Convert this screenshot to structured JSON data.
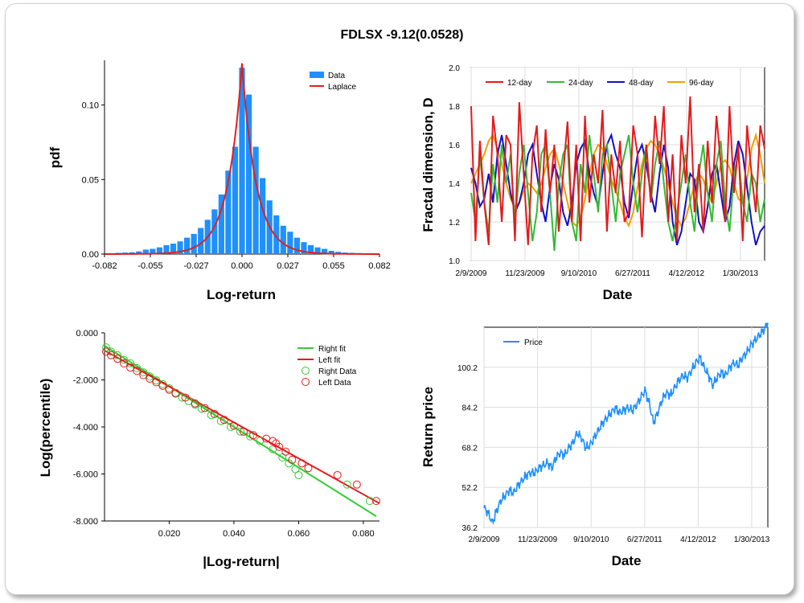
{
  "title": "FDLSX -9.12(0.0528)",
  "colors": {
    "bar_blue": "#1e90ff",
    "laplace_red": "#e02020",
    "d12": "#e41a1c",
    "d24": "#33bb33",
    "d48": "#1010c8",
    "d96": "#f0a000",
    "right_green": "#33cc33",
    "left_red": "#e41a1c",
    "price_blue": "#1e90ff",
    "grid": "#dddddd"
  },
  "chart_data": [
    {
      "id": "histogram",
      "type": "bar",
      "xlabel": "Log-return",
      "ylabel": "pdf",
      "xlim": [
        -0.082,
        0.082
      ],
      "ylim": [
        0,
        0.13
      ],
      "xticks": [
        "-0.082",
        "-0.055",
        "-0.027",
        "0.000",
        "0.027",
        "0.055",
        "0.082"
      ],
      "yticks": [
        "0.00",
        "0.05",
        "0.10"
      ],
      "bin_width": 0.0041,
      "bin_centers": [
        -0.0779,
        -0.0738,
        -0.0697,
        -0.0656,
        -0.0615,
        -0.0574,
        -0.0533,
        -0.0492,
        -0.0451,
        -0.041,
        -0.0369,
        -0.0328,
        -0.0287,
        -0.0246,
        -0.0205,
        -0.0164,
        -0.0123,
        -0.0082,
        -0.0041,
        0.0,
        0.0041,
        0.0082,
        0.0123,
        0.0164,
        0.0205,
        0.0246,
        0.0287,
        0.0328,
        0.0369,
        0.041,
        0.0451,
        0.0492,
        0.0533,
        0.0574,
        0.0615,
        0.0656,
        0.0697,
        0.0738,
        0.0779
      ],
      "values": [
        0.0005,
        0.0008,
        0.001,
        0.0012,
        0.0018,
        0.003,
        0.0035,
        0.0045,
        0.006,
        0.007,
        0.0085,
        0.011,
        0.0135,
        0.0175,
        0.023,
        0.03,
        0.04,
        0.056,
        0.072,
        0.125,
        0.107,
        0.072,
        0.051,
        0.036,
        0.026,
        0.019,
        0.015,
        0.011,
        0.008,
        0.006,
        0.0045,
        0.0035,
        0.0022,
        0.0015,
        0.001,
        0.0008,
        0.0006,
        0.0004,
        0.0005
      ],
      "laplace_peak": 0.128,
      "laplace_scale": 0.0085,
      "legend": [
        {
          "name": "Data"
        },
        {
          "name": "Laplace"
        }
      ]
    },
    {
      "id": "fractal",
      "type": "line",
      "xlabel": "Date",
      "ylabel": "Fractal dimension, D",
      "ylim": [
        1.0,
        2.0
      ],
      "yticks": [
        "1.0",
        "1.2",
        "1.4",
        "1.6",
        "1.8",
        "2.0"
      ],
      "xticks": [
        "2/9/2009",
        "11/23/2009",
        "9/10/2010",
        "6/27/2011",
        "4/12/2012",
        "1/30/2013"
      ],
      "x_range_fraction_of_ticks": [
        0,
        1.09
      ],
      "series": [
        {
          "name": "12-day",
          "color_key": "d12",
          "values": [
            1.8,
            1.1,
            1.62,
            1.3,
            1.08,
            1.75,
            1.55,
            1.2,
            1.65,
            1.6,
            1.1,
            1.82,
            1.45,
            1.08,
            1.55,
            1.7,
            1.25,
            1.68,
            1.35,
            1.6,
            1.15,
            1.45,
            1.72,
            1.2,
            1.6,
            1.1,
            1.75,
            1.3,
            1.55,
            1.4,
            1.78,
            1.15,
            1.55,
            1.35,
            1.62,
            1.2,
            1.25,
            1.7,
            1.55,
            1.12,
            1.6,
            1.3,
            1.75,
            1.5,
            1.8,
            1.2,
            1.55,
            1.1,
            1.65,
            1.4,
            1.85,
            1.25,
            1.5,
            1.15,
            1.62,
            1.3,
            1.75,
            1.5,
            1.2,
            1.8,
            1.35,
            1.6,
            1.1,
            1.7,
            1.45,
            1.25,
            1.7,
            1.58
          ]
        },
        {
          "name": "24-day",
          "color_key": "d24",
          "values": [
            1.35,
            1.2,
            1.55,
            1.3,
            1.15,
            1.5,
            1.3,
            1.6,
            1.4,
            1.55,
            1.2,
            1.45,
            1.6,
            1.35,
            1.1,
            1.25,
            1.55,
            1.6,
            1.35,
            1.05,
            1.4,
            1.55,
            1.6,
            1.2,
            1.1,
            1.5,
            1.35,
            1.65,
            1.45,
            1.25,
            1.55,
            1.6,
            1.4,
            1.2,
            1.45,
            1.55,
            1.65,
            1.4,
            1.25,
            1.45,
            1.6,
            1.3,
            1.5,
            1.62,
            1.4,
            1.2,
            1.1,
            1.25,
            1.4,
            1.55,
            1.3,
            1.15,
            1.45,
            1.6,
            1.35,
            1.2,
            1.5,
            1.62,
            1.3,
            1.15,
            1.45,
            1.55,
            1.3,
            1.2,
            1.45,
            1.4,
            1.2,
            1.32
          ]
        },
        {
          "name": "48-day",
          "color_key": "d48",
          "values": [
            1.48,
            1.4,
            1.28,
            1.32,
            1.45,
            1.3,
            1.55,
            1.65,
            1.5,
            1.35,
            1.25,
            1.3,
            1.4,
            1.55,
            1.6,
            1.45,
            1.3,
            1.2,
            1.38,
            1.5,
            1.42,
            1.25,
            1.18,
            1.3,
            1.5,
            1.58,
            1.62,
            1.45,
            1.35,
            1.28,
            1.45,
            1.6,
            1.65,
            1.55,
            1.48,
            1.3,
            1.22,
            1.4,
            1.55,
            1.6,
            1.5,
            1.35,
            1.25,
            1.45,
            1.6,
            1.48,
            1.2,
            1.08,
            1.15,
            1.3,
            1.45,
            1.42,
            1.2,
            1.15,
            1.28,
            1.45,
            1.5,
            1.35,
            1.2,
            1.28,
            1.5,
            1.62,
            1.55,
            1.38,
            1.2,
            1.08,
            1.15,
            1.18
          ]
        },
        {
          "name": "96-day",
          "color_key": "d96",
          "values": [
            1.4,
            1.45,
            1.5,
            1.55,
            1.62,
            1.65,
            1.58,
            1.5,
            1.4,
            1.32,
            1.28,
            1.3,
            1.36,
            1.4,
            1.38,
            1.35,
            1.4,
            1.48,
            1.55,
            1.58,
            1.5,
            1.4,
            1.3,
            1.2,
            1.18,
            1.22,
            1.32,
            1.45,
            1.55,
            1.6,
            1.58,
            1.5,
            1.42,
            1.36,
            1.3,
            1.22,
            1.18,
            1.25,
            1.38,
            1.5,
            1.58,
            1.62,
            1.6,
            1.55,
            1.48,
            1.4,
            1.3,
            1.22,
            1.18,
            1.22,
            1.3,
            1.4,
            1.45,
            1.42,
            1.35,
            1.3,
            1.4,
            1.5,
            1.52,
            1.48,
            1.4,
            1.32,
            1.3,
            1.42,
            1.58,
            1.65,
            1.55,
            1.4
          ]
        }
      ]
    },
    {
      "id": "tails",
      "type": "scatter",
      "xlabel": "|Log-return|",
      "ylabel": "Log(percentile)",
      "xlim": [
        0,
        0.085
      ],
      "ylim": [
        -8.0,
        0.0
      ],
      "xticks": [
        "0.020",
        "0.040",
        "0.060",
        "0.080"
      ],
      "yticks": [
        "0.000",
        "-2.000",
        "-4.000",
        "-6.000",
        "-8.000"
      ],
      "right_fit": {
        "name": "Right fit",
        "x": [
          0,
          0.084
        ],
        "y": [
          -0.55,
          -7.8
        ]
      },
      "left_fit": {
        "name": "Left fit",
        "x": [
          0,
          0.085
        ],
        "y": [
          -0.75,
          -7.25
        ]
      },
      "right_data": {
        "name": "Right Data",
        "points": [
          [
            0.0005,
            -0.62
          ],
          [
            0.002,
            -0.8
          ],
          [
            0.004,
            -0.95
          ],
          [
            0.006,
            -1.15
          ],
          [
            0.008,
            -1.3
          ],
          [
            0.01,
            -1.5
          ],
          [
            0.012,
            -1.68
          ],
          [
            0.014,
            -1.85
          ],
          [
            0.016,
            -2.02
          ],
          [
            0.018,
            -2.18
          ],
          [
            0.02,
            -2.36
          ],
          [
            0.022,
            -2.55
          ],
          [
            0.024,
            -2.75
          ],
          [
            0.026,
            -2.9
          ],
          [
            0.028,
            -3.05
          ],
          [
            0.03,
            -3.22
          ],
          [
            0.033,
            -3.5
          ],
          [
            0.036,
            -3.75
          ],
          [
            0.039,
            -4.0
          ],
          [
            0.042,
            -4.2
          ],
          [
            0.045,
            -4.4
          ],
          [
            0.048,
            -4.6
          ],
          [
            0.052,
            -4.95
          ],
          [
            0.055,
            -5.3
          ],
          [
            0.057,
            -5.55
          ],
          [
            0.059,
            -5.8
          ],
          [
            0.06,
            -6.05
          ],
          [
            0.075,
            -6.45
          ],
          [
            0.082,
            -7.15
          ]
        ]
      },
      "left_data": {
        "name": "Left Data",
        "points": [
          [
            0.0005,
            -0.8
          ],
          [
            0.002,
            -0.95
          ],
          [
            0.004,
            -1.1
          ],
          [
            0.006,
            -1.3
          ],
          [
            0.008,
            -1.48
          ],
          [
            0.01,
            -1.62
          ],
          [
            0.012,
            -1.8
          ],
          [
            0.014,
            -1.95
          ],
          [
            0.016,
            -2.1
          ],
          [
            0.018,
            -2.25
          ],
          [
            0.02,
            -2.42
          ],
          [
            0.022,
            -2.58
          ],
          [
            0.025,
            -2.75
          ],
          [
            0.028,
            -3.0
          ],
          [
            0.031,
            -3.2
          ],
          [
            0.034,
            -3.45
          ],
          [
            0.037,
            -3.7
          ],
          [
            0.04,
            -3.95
          ],
          [
            0.043,
            -4.2
          ],
          [
            0.046,
            -4.35
          ],
          [
            0.05,
            -4.5
          ],
          [
            0.052,
            -4.6
          ],
          [
            0.053,
            -4.7
          ],
          [
            0.054,
            -4.85
          ],
          [
            0.056,
            -5.05
          ],
          [
            0.058,
            -5.4
          ],
          [
            0.061,
            -5.55
          ],
          [
            0.063,
            -5.75
          ],
          [
            0.072,
            -6.05
          ],
          [
            0.078,
            -6.45
          ],
          [
            0.084,
            -7.15
          ]
        ]
      }
    },
    {
      "id": "price",
      "type": "line",
      "xlabel": "Date",
      "ylabel": "Return price",
      "ylim": [
        36.2,
        116.2
      ],
      "yticks": [
        "36.2",
        "52.2",
        "68.2",
        "84.2",
        "100.2"
      ],
      "xticks": [
        "2/9/2009",
        "11/23/2009",
        "9/10/2010",
        "6/27/2011",
        "4/12/2012",
        "1/30/2013"
      ],
      "x_range_fraction_of_ticks": [
        0,
        1.06
      ],
      "series": [
        {
          "name": "Price",
          "color_key": "price_blue",
          "values": [
            44,
            42,
            38,
            43,
            47,
            49,
            51,
            50,
            53,
            55,
            57,
            58,
            58,
            60,
            61,
            62,
            60,
            64,
            66,
            65,
            68,
            70,
            74,
            72,
            68,
            69,
            72,
            75,
            78,
            80,
            82,
            84,
            82,
            83,
            84,
            83,
            85,
            88,
            91,
            86,
            78,
            82,
            87,
            90,
            89,
            92,
            95,
            97,
            96,
            99,
            102,
            104,
            100,
            97,
            93,
            96,
            98,
            97,
            100,
            102,
            101,
            104,
            106,
            109,
            111,
            113,
            115,
            118
          ]
        }
      ]
    }
  ]
}
